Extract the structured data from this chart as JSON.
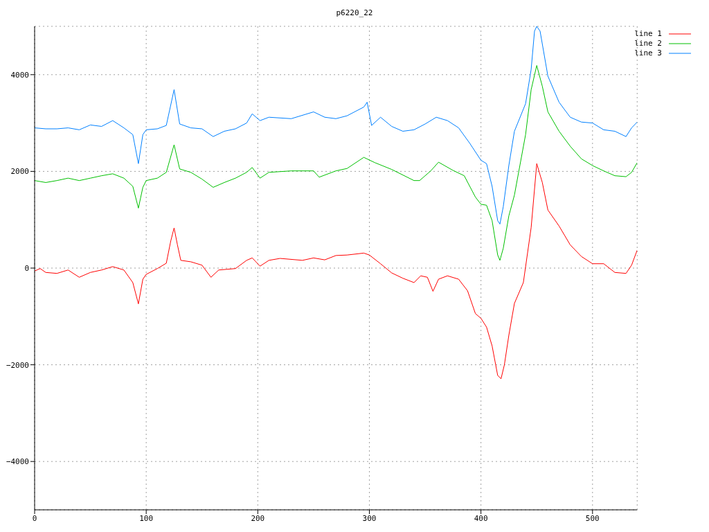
{
  "chart_data": {
    "type": "line",
    "title": "p6220_22",
    "xlim": [
      0,
      540
    ],
    "xticks": [
      0,
      100,
      200,
      300,
      400,
      500
    ],
    "ylim": [
      -5000,
      5000
    ],
    "yticks": [
      -4000,
      -2000,
      0,
      2000,
      4000
    ],
    "grid": true,
    "legend": "top right",
    "marker": "none",
    "line_style": "solid",
    "series": [
      {
        "name": "line 1",
        "color": "#ff0000",
        "x": [
          0,
          5,
          10,
          20,
          30,
          40,
          50,
          60,
          70,
          80,
          88,
          93,
          97,
          100,
          110,
          118,
          122,
          125,
          128,
          131,
          140,
          150,
          158,
          165,
          180,
          190,
          195,
          202,
          210,
          220,
          240,
          250,
          260,
          270,
          280,
          295,
          300,
          310,
          320,
          330,
          340,
          346,
          352,
          357,
          362,
          370,
          380,
          388,
          395,
          400,
          405,
          410,
          415,
          418,
          421,
          425,
          430,
          438,
          445,
          450,
          455,
          460,
          470,
          480,
          490,
          500,
          510,
          520,
          530,
          535,
          540
        ],
        "values": [
          -60,
          -10,
          -90,
          -110,
          -40,
          -190,
          -90,
          -40,
          30,
          -40,
          -300,
          -740,
          -230,
          -130,
          -10,
          100,
          560,
          830,
          480,
          160,
          130,
          60,
          -190,
          -40,
          -10,
          160,
          210,
          40,
          160,
          200,
          160,
          210,
          170,
          260,
          270,
          310,
          270,
          90,
          -100,
          -210,
          -300,
          -160,
          -190,
          -480,
          -230,
          -160,
          -230,
          -470,
          -940,
          -1040,
          -1220,
          -1610,
          -2220,
          -2290,
          -2000,
          -1390,
          -730,
          -300,
          840,
          2160,
          1770,
          1200,
          870,
          480,
          240,
          90,
          90,
          -90,
          -110,
          60,
          370
        ]
      },
      {
        "name": "line 2",
        "color": "#00c000",
        "x": [
          0,
          10,
          20,
          30,
          40,
          50,
          60,
          70,
          80,
          88,
          93,
          97,
          100,
          110,
          118,
          125,
          130,
          140,
          150,
          160,
          170,
          180,
          190,
          195,
          202,
          210,
          230,
          250,
          255,
          270,
          280,
          295,
          305,
          320,
          340,
          345,
          355,
          362,
          375,
          385,
          395,
          400,
          405,
          410,
          415,
          417,
          420,
          425,
          430,
          440,
          445,
          450,
          455,
          460,
          470,
          480,
          490,
          500,
          510,
          520,
          530,
          535,
          540
        ],
        "values": [
          1810,
          1770,
          1810,
          1860,
          1810,
          1860,
          1910,
          1950,
          1860,
          1690,
          1240,
          1670,
          1810,
          1860,
          1980,
          2550,
          2050,
          1980,
          1840,
          1670,
          1770,
          1860,
          1980,
          2080,
          1860,
          1980,
          2010,
          2010,
          1880,
          2010,
          2060,
          2290,
          2180,
          2040,
          1810,
          1810,
          2010,
          2190,
          2020,
          1910,
          1470,
          1320,
          1300,
          980,
          270,
          160,
          410,
          1080,
          1510,
          2760,
          3690,
          4190,
          3760,
          3230,
          2830,
          2520,
          2260,
          2120,
          2010,
          1910,
          1890,
          1980,
          2180
        ]
      },
      {
        "name": "line 3",
        "color": "#0080ff",
        "x": [
          0,
          10,
          20,
          30,
          40,
          50,
          60,
          70,
          80,
          88,
          93,
          97,
          100,
          110,
          118,
          125,
          130,
          140,
          150,
          160,
          170,
          180,
          190,
          195,
          202,
          210,
          230,
          250,
          260,
          270,
          280,
          295,
          298,
          302,
          310,
          320,
          330,
          340,
          350,
          360,
          370,
          380,
          390,
          400,
          405,
          410,
          415,
          417,
          420,
          425,
          430,
          440,
          445,
          448,
          450,
          453,
          460,
          470,
          480,
          490,
          500,
          510,
          520,
          530,
          535,
          540
        ],
        "values": [
          2900,
          2880,
          2880,
          2900,
          2860,
          2960,
          2930,
          3050,
          2900,
          2760,
          2160,
          2760,
          2860,
          2880,
          2950,
          3690,
          2980,
          2900,
          2880,
          2720,
          2830,
          2880,
          3000,
          3190,
          3050,
          3120,
          3090,
          3230,
          3120,
          3090,
          3150,
          3330,
          3430,
          2950,
          3120,
          2930,
          2830,
          2860,
          2980,
          3120,
          3050,
          2900,
          2580,
          2230,
          2160,
          1690,
          980,
          910,
          1270,
          2120,
          2830,
          3400,
          4110,
          4900,
          5000,
          4900,
          3970,
          3430,
          3120,
          3020,
          3000,
          2860,
          2830,
          2720,
          2900,
          3020
        ]
      }
    ]
  }
}
